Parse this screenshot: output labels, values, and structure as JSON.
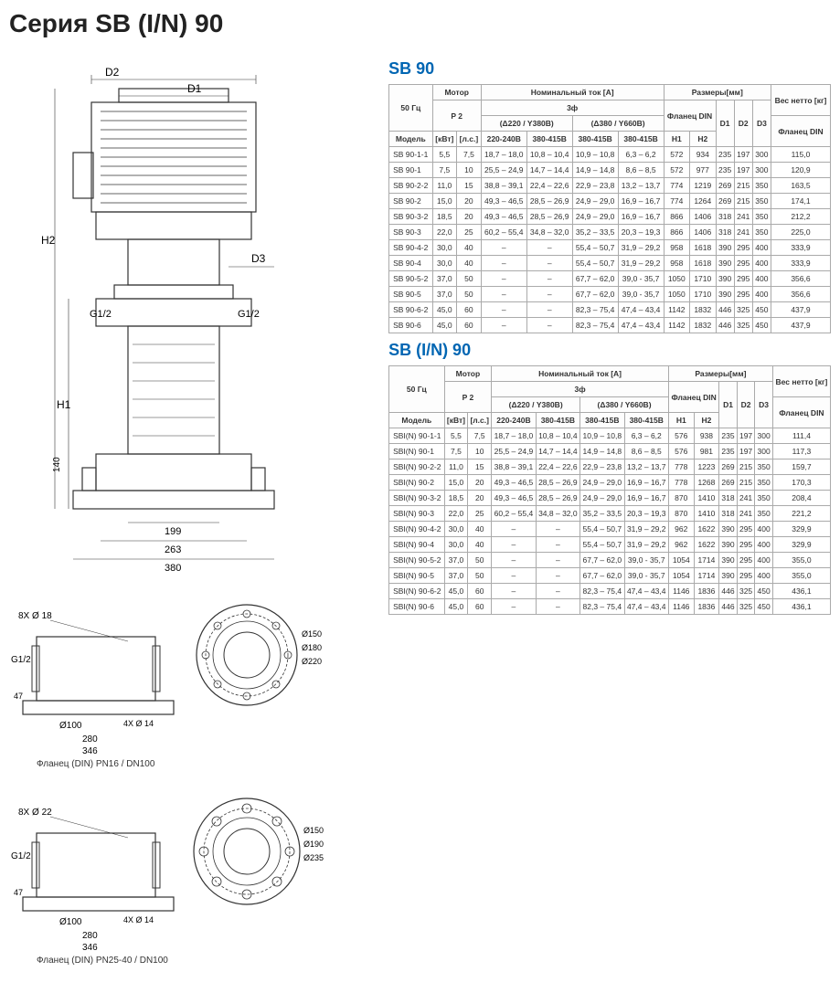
{
  "page": {
    "title_prefix": "Серия ",
    "title_main": "SB (I/N) 90"
  },
  "table1": {
    "title": "SB 90",
    "headers": {
      "freq": "50 Гц",
      "motor": "Мотор",
      "p2": "P 2",
      "nominal": "Номинальный ток [A]",
      "phase3": "3ф",
      "delta220": "(Δ220 / Y380B)",
      "delta380": "(Δ380 / Y660B)",
      "dims": "Размеры[мм]",
      "flange": "Фланец DIN",
      "netweight": "Вес нетто [кг]",
      "model": "Модель",
      "kw": "[кВт]",
      "hp": "[л.с.]",
      "v1": "220-240B",
      "v2": "380-415B",
      "v3": "380-415B",
      "v4": "380-415B",
      "h1": "H1",
      "h2": "H2",
      "d1": "D1",
      "d2": "D2",
      "d3": "D3",
      "flangedin": "Фланец DIN"
    },
    "rows": [
      [
        "SB 90-1-1",
        "5,5",
        "7,5",
        "18,7 – 18,0",
        "10,8 – 10,4",
        "10,9 – 10,8",
        "6,3 – 6,2",
        "572",
        "934",
        "235",
        "197",
        "300",
        "115,0"
      ],
      [
        "SB 90-1",
        "7,5",
        "10",
        "25,5 – 24,9",
        "14,7 – 14,4",
        "14,9 – 14,8",
        "8,6 – 8,5",
        "572",
        "977",
        "235",
        "197",
        "300",
        "120,9"
      ],
      [
        "SB 90-2-2",
        "11,0",
        "15",
        "38,8 – 39,1",
        "22,4 – 22,6",
        "22,9 – 23,8",
        "13,2 – 13,7",
        "774",
        "1219",
        "269",
        "215",
        "350",
        "163,5"
      ],
      [
        "SB 90-2",
        "15,0",
        "20",
        "49,3 – 46,5",
        "28,5 – 26,9",
        "24,9 – 29,0",
        "16,9 – 16,7",
        "774",
        "1264",
        "269",
        "215",
        "350",
        "174,1"
      ],
      [
        "SB 90-3-2",
        "18,5",
        "20",
        "49,3 – 46,5",
        "28,5 – 26,9",
        "24,9 – 29,0",
        "16,9 – 16,7",
        "866",
        "1406",
        "318",
        "241",
        "350",
        "212,2"
      ],
      [
        "SB 90-3",
        "22,0",
        "25",
        "60,2 – 55,4",
        "34,8 – 32,0",
        "35,2 – 33,5",
        "20,3 – 19,3",
        "866",
        "1406",
        "318",
        "241",
        "350",
        "225,0"
      ],
      [
        "SB 90-4-2",
        "30,0",
        "40",
        "–",
        "–",
        "55,4 – 50,7",
        "31,9 – 29,2",
        "958",
        "1618",
        "390",
        "295",
        "400",
        "333,9"
      ],
      [
        "SB 90-4",
        "30,0",
        "40",
        "–",
        "–",
        "55,4 – 50,7",
        "31,9 – 29,2",
        "958",
        "1618",
        "390",
        "295",
        "400",
        "333,9"
      ],
      [
        "SB 90-5-2",
        "37,0",
        "50",
        "–",
        "–",
        "67,7 – 62,0",
        "39,0 - 35,7",
        "1050",
        "1710",
        "390",
        "295",
        "400",
        "356,6"
      ],
      [
        "SB 90-5",
        "37,0",
        "50",
        "–",
        "–",
        "67,7 – 62,0",
        "39,0 - 35,7",
        "1050",
        "1710",
        "390",
        "295",
        "400",
        "356,6"
      ],
      [
        "SB 90-6-2",
        "45,0",
        "60",
        "–",
        "–",
        "82,3 – 75,4",
        "47,4 – 43,4",
        "1142",
        "1832",
        "446",
        "325",
        "450",
        "437,9"
      ],
      [
        "SB 90-6",
        "45,0",
        "60",
        "–",
        "–",
        "82,3 – 75,4",
        "47,4 – 43,4",
        "1142",
        "1832",
        "446",
        "325",
        "450",
        "437,9"
      ]
    ]
  },
  "table2": {
    "title": "SB (I/N) 90",
    "rows": [
      [
        "SBI(N) 90-1-1",
        "5,5",
        "7,5",
        "18,7 – 18,0",
        "10,8 – 10,4",
        "10,9 – 10,8",
        "6,3 – 6,2",
        "576",
        "938",
        "235",
        "197",
        "300",
        "111,4"
      ],
      [
        "SBI(N) 90-1",
        "7,5",
        "10",
        "25,5 – 24,9",
        "14,7 – 14,4",
        "14,9 – 14,8",
        "8,6 – 8,5",
        "576",
        "981",
        "235",
        "197",
        "300",
        "117,3"
      ],
      [
        "SBI(N) 90-2-2",
        "11,0",
        "15",
        "38,8 – 39,1",
        "22,4 – 22,6",
        "22,9 – 23,8",
        "13,2 – 13,7",
        "778",
        "1223",
        "269",
        "215",
        "350",
        "159,7"
      ],
      [
        "SBI(N) 90-2",
        "15,0",
        "20",
        "49,3 – 46,5",
        "28,5 – 26,9",
        "24,9 – 29,0",
        "16,9 – 16,7",
        "778",
        "1268",
        "269",
        "215",
        "350",
        "170,3"
      ],
      [
        "SBI(N) 90-3-2",
        "18,5",
        "20",
        "49,3 – 46,5",
        "28,5 – 26,9",
        "24,9 – 29,0",
        "16,9 – 16,7",
        "870",
        "1410",
        "318",
        "241",
        "350",
        "208,4"
      ],
      [
        "SBI(N) 90-3",
        "22,0",
        "25",
        "60,2 – 55,4",
        "34,8 – 32,0",
        "35,2 – 33,5",
        "20,3 – 19,3",
        "870",
        "1410",
        "318",
        "241",
        "350",
        "221,2"
      ],
      [
        "SBI(N) 90-4-2",
        "30,0",
        "40",
        "–",
        "–",
        "55,4 – 50,7",
        "31,9 – 29,2",
        "962",
        "1622",
        "390",
        "295",
        "400",
        "329,9"
      ],
      [
        "SBI(N) 90-4",
        "30,0",
        "40",
        "–",
        "–",
        "55,4 – 50,7",
        "31,9 – 29,2",
        "962",
        "1622",
        "390",
        "295",
        "400",
        "329,9"
      ],
      [
        "SBI(N) 90-5-2",
        "37,0",
        "50",
        "–",
        "–",
        "67,7 – 62,0",
        "39,0 - 35,7",
        "1054",
        "1714",
        "390",
        "295",
        "400",
        "355,0"
      ],
      [
        "SBI(N) 90-5",
        "37,0",
        "50",
        "–",
        "–",
        "67,7 – 62,0",
        "39,0 - 35,7",
        "1054",
        "1714",
        "390",
        "295",
        "400",
        "355,0"
      ],
      [
        "SBI(N) 90-6-2",
        "45,0",
        "60",
        "–",
        "–",
        "82,3 – 75,4",
        "47,4 – 43,4",
        "1146",
        "1836",
        "446",
        "325",
        "450",
        "436,1"
      ],
      [
        "SBI(N) 90-6",
        "45,0",
        "60",
        "–",
        "–",
        "82,3 – 75,4",
        "47,4 – 43,4",
        "1146",
        "1836",
        "446",
        "325",
        "450",
        "436,1"
      ]
    ]
  },
  "diagram": {
    "labels": {
      "d1": "D1",
      "d2": "D2",
      "d3": "D3",
      "h1": "H1",
      "h2": "H2",
      "g12a": "G1/2",
      "g12b": "G1/2",
      "dim140": "140",
      "dim199": "199",
      "dim263": "263",
      "dim380": "380"
    }
  },
  "flange1": {
    "label": "Фланец (DIN) PN16 / DN100",
    "annotations": {
      "bolt8": "8X Ø 18",
      "g12": "G1/2",
      "d150": "Ø150",
      "d180": "Ø180",
      "d220": "Ø220",
      "d100": "Ø100",
      "bolt4": "4X Ø 14",
      "dim280": "280",
      "dim346": "346",
      "dim47": "47"
    }
  },
  "flange2": {
    "label": "Фланец (DIN) PN25-40 / DN100",
    "annotations": {
      "bolt8": "8X Ø 22",
      "g12": "G1/2",
      "d150": "Ø150",
      "d190": "Ø190",
      "d235": "Ø235",
      "d100": "Ø100",
      "bolt4": "4X Ø 14",
      "dim280": "280",
      "dim346": "346",
      "dim47": "47"
    }
  }
}
